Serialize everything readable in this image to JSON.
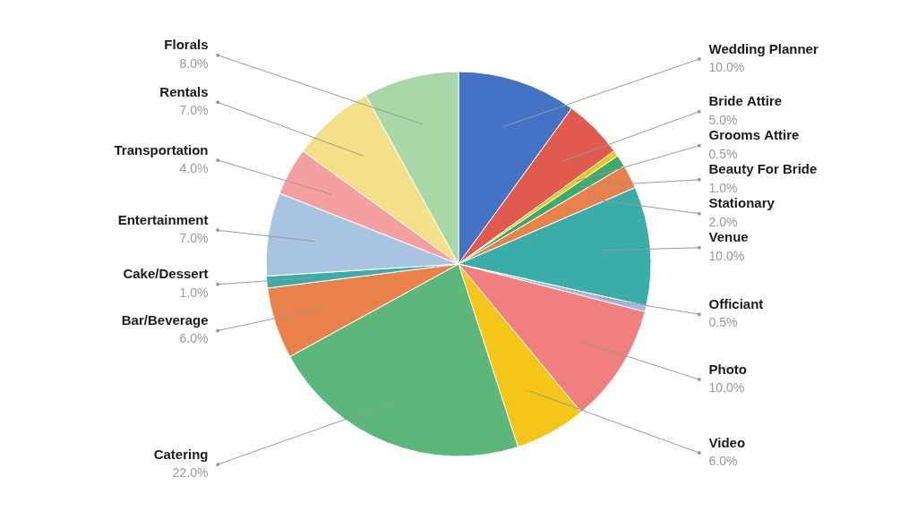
{
  "chart_data": {
    "type": "pie",
    "categories": [
      "Wedding Planner",
      "Bride Attire",
      "Grooms Attire",
      "Beauty For Bride",
      "Stationary",
      "Venue",
      "Officiant",
      "Photo",
      "Video",
      "Catering",
      "Bar/Beverage",
      "Cake/Dessert",
      "Entertainment",
      "Transportation",
      "Rentals",
      "Florals"
    ],
    "values": [
      10.0,
      5.0,
      0.5,
      1.0,
      2.0,
      10.0,
      0.5,
      10.0,
      6.0,
      22.0,
      6.0,
      1.0,
      7.0,
      4.0,
      7.0,
      8.0
    ],
    "value_labels": [
      "10.0%",
      "5.0%",
      "0.5%",
      "1.0%",
      "2.0%",
      "10.0%",
      "0.5%",
      "10.0%",
      "6.0%",
      "22.0%",
      "6.0%",
      "1.0%",
      "7.0%",
      "4.0%",
      "7.0%",
      "8.0%"
    ],
    "colors": [
      "#4472C4",
      "#E05A4E",
      "#F5C518",
      "#3DAA6E",
      "#E8824A",
      "#3AADA8",
      "#A8B4D8",
      "#F08080",
      "#F5C518",
      "#5BB87A",
      "#E8824A",
      "#3AADA8",
      "#A8C4E0",
      "#F4A0A0",
      "#F5E08A",
      "#A8D8A8"
    ],
    "data_labels": true
  }
}
